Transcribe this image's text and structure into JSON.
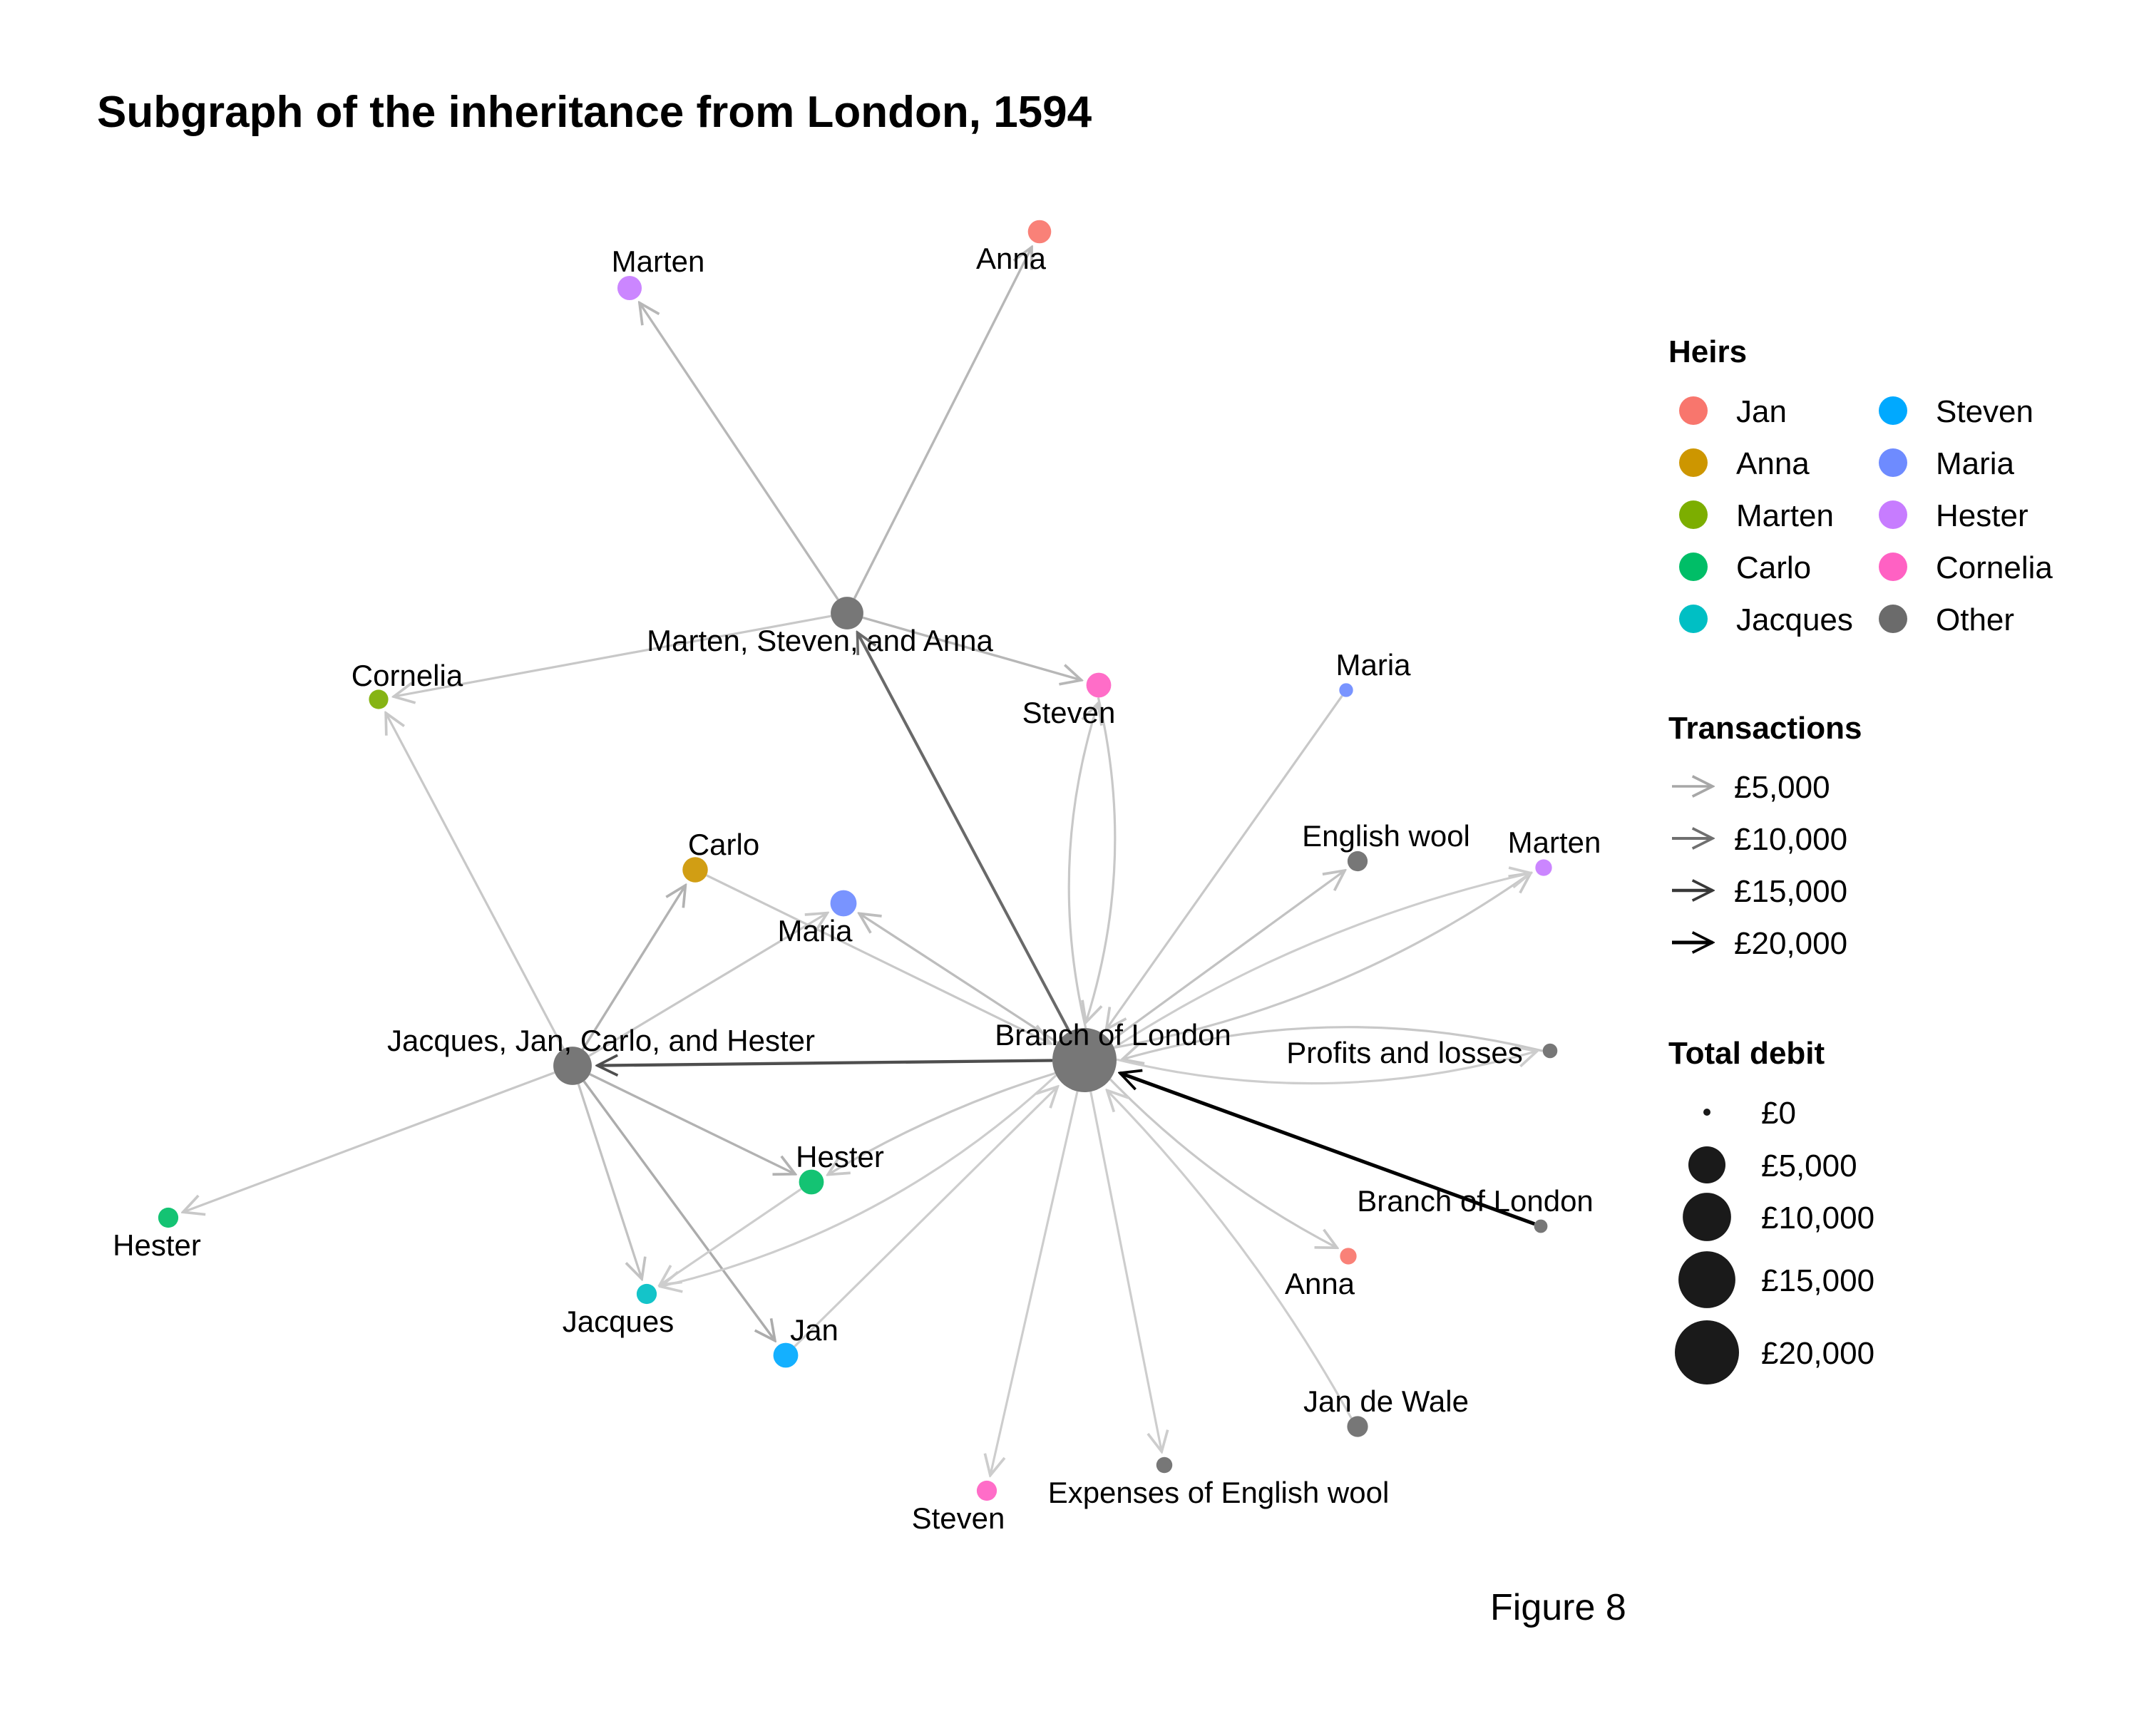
{
  "title": "Subgraph of the inheritance from London, 1594",
  "caption": "Figure 8",
  "colors": {
    "Jan": "#F8766D",
    "Anna": "#CD9600",
    "Marten": "#7CAE00",
    "Carlo": "#00BE67",
    "Jacques": "#00BFC4",
    "Steven": "#00A9FF",
    "Maria": "#6E8BFF",
    "Hester": "#C77CFF",
    "Cornelia": "#FF61C3",
    "Other": "#6B6B6B"
  },
  "legend_heirs": {
    "title": "Heirs",
    "items": [
      "Jan",
      "Anna",
      "Marten",
      "Carlo",
      "Jacques",
      "Steven",
      "Maria",
      "Hester",
      "Cornelia",
      "Other"
    ]
  },
  "legend_transactions": {
    "title": "Transactions",
    "items": [
      "£5,000",
      "£10,000",
      "£15,000",
      "£20,000"
    ]
  },
  "legend_debit": {
    "title": "Total debit",
    "items": [
      "£0",
      "£5,000",
      "£10,000",
      "£15,000",
      "£20,000"
    ]
  },
  "graph": {
    "nodes": [
      {
        "id": "anna_top",
        "label": "Anna",
        "heir": "Jan",
        "debit": 1200
      },
      {
        "id": "marten_top",
        "label": "Marten",
        "heir": "Hester",
        "debit": 1400
      },
      {
        "id": "msa",
        "label": "Marten, Steven, and Anna",
        "heir": "Other",
        "debit": 3500
      },
      {
        "id": "cornelia",
        "label": "Cornelia",
        "heir": "Marten",
        "debit": 600
      },
      {
        "id": "steven_mid",
        "label": "Steven",
        "heir": "Cornelia",
        "debit": 1500
      },
      {
        "id": "maria_r",
        "label": "Maria",
        "heir": "Maria",
        "debit": 100
      },
      {
        "id": "carlo",
        "label": "Carlo",
        "heir": "Anna",
        "debit": 1600
      },
      {
        "id": "maria_c",
        "label": "Maria",
        "heir": "Maria",
        "debit": 1800
      },
      {
        "id": "english_wool",
        "label": "English wool",
        "heir": "Other",
        "debit": 700
      },
      {
        "id": "marten_r",
        "label": "Marten",
        "heir": "Hester",
        "debit": 300
      },
      {
        "id": "jjch",
        "label": "Jacques, Jan, Carlo, and Hester",
        "heir": "Other",
        "debit": 5500
      },
      {
        "id": "branch",
        "label": "Branch of London",
        "heir": "Other",
        "debit": 20000
      },
      {
        "id": "profits",
        "label": "Profits and losses",
        "heir": "Other",
        "debit": 150
      },
      {
        "id": "hester_mid",
        "label": "Hester",
        "heir": "Carlo",
        "debit": 1500
      },
      {
        "id": "hester_left",
        "label": "Hester",
        "heir": "Carlo",
        "debit": 700
      },
      {
        "id": "branch2",
        "label": "Branch of London",
        "heir": "Other",
        "debit": 80
      },
      {
        "id": "anna_r",
        "label": "Anna",
        "heir": "Jan",
        "debit": 300
      },
      {
        "id": "jacques",
        "label": "Jacques",
        "heir": "Jacques",
        "debit": 700
      },
      {
        "id": "jan",
        "label": "Jan",
        "heir": "Steven",
        "debit": 1500
      },
      {
        "id": "jan_de_wale",
        "label": "Jan de Wale",
        "heir": "Other",
        "debit": 800
      },
      {
        "id": "expenses",
        "label": "Expenses of English wool",
        "heir": "Other",
        "debit": 250
      },
      {
        "id": "steven_bot",
        "label": "Steven",
        "heir": "Cornelia",
        "debit": 700
      }
    ],
    "edges": [
      {
        "from": "msa",
        "to": "anna_top",
        "amount": 3500
      },
      {
        "from": "msa",
        "to": "marten_top",
        "amount": 3500
      },
      {
        "from": "msa",
        "to": "cornelia",
        "amount": 2000
      },
      {
        "from": "msa",
        "to": "steven_mid",
        "amount": 3500
      },
      {
        "from": "branch",
        "to": "msa",
        "amount": 10500
      },
      {
        "from": "branch",
        "to": "steven_mid",
        "amount": 2000
      },
      {
        "from": "steven_mid",
        "to": "branch",
        "amount": 2000
      },
      {
        "from": "maria_r",
        "to": "branch",
        "amount": 2000
      },
      {
        "from": "branch",
        "to": "english_wool",
        "amount": 2500
      },
      {
        "from": "branch",
        "to": "marten_r",
        "amount": 2000
      },
      {
        "from": "branch",
        "to": "marten_r",
        "amount": 1500
      },
      {
        "from": "branch",
        "to": "maria_c",
        "amount": 3000
      },
      {
        "from": "carlo",
        "to": "branch",
        "amount": 2000
      },
      {
        "from": "jjch",
        "to": "carlo",
        "amount": 4000
      },
      {
        "from": "jjch",
        "to": "maria_c",
        "amount": 2000
      },
      {
        "from": "jjch",
        "to": "cornelia",
        "amount": 2000
      },
      {
        "from": "branch",
        "to": "jjch",
        "amount": 13000
      },
      {
        "from": "profits",
        "to": "branch",
        "amount": 2000
      },
      {
        "from": "branch",
        "to": "profits",
        "amount": 1500
      },
      {
        "from": "branch2",
        "to": "branch",
        "amount": 20000
      },
      {
        "from": "jjch",
        "to": "hester_mid",
        "amount": 4000
      },
      {
        "from": "branch",
        "to": "hester_mid",
        "amount": 2000
      },
      {
        "from": "jjch",
        "to": "hester_left",
        "amount": 2000
      },
      {
        "from": "jjch",
        "to": "jacques",
        "amount": 2500
      },
      {
        "from": "jjch",
        "to": "jan",
        "amount": 4500
      },
      {
        "from": "hester_mid",
        "to": "jacques",
        "amount": 1500
      },
      {
        "from": "branch",
        "to": "jacques",
        "amount": 1500
      },
      {
        "from": "jan",
        "to": "branch",
        "amount": 1500
      },
      {
        "from": "branch",
        "to": "anna_r",
        "amount": 2000
      },
      {
        "from": "jan_de_wale",
        "to": "branch",
        "amount": 1500
      },
      {
        "from": "branch",
        "to": "expenses",
        "amount": 1500
      },
      {
        "from": "branch",
        "to": "steven_bot",
        "amount": 1500
      }
    ]
  }
}
